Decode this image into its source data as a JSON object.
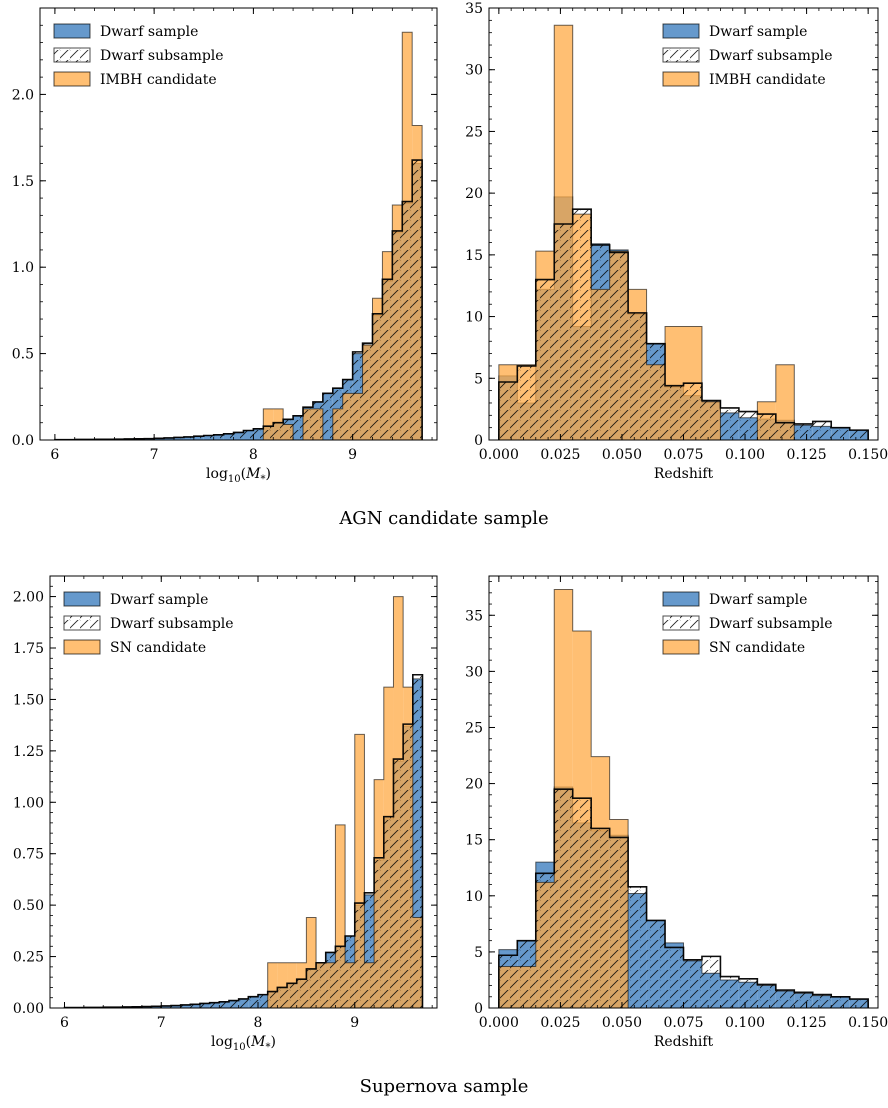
{
  "captions": {
    "top": "AGN candidate sample",
    "bottom": "Supernova sample"
  },
  "colors": {
    "dwarf_fill": "#6699cc",
    "candidate_fill": "#ffaa44",
    "edge": "#000000"
  },
  "chart_data": [
    {
      "id": "agn-mass",
      "type": "histogram",
      "xlabel": "log10(M*)",
      "ylabel": "",
      "xlim": [
        5.85,
        9.85
      ],
      "ylim": [
        0,
        2.5
      ],
      "xticks": [
        6,
        7,
        8,
        9
      ],
      "yticks": [
        0.0,
        0.5,
        1.0,
        1.5,
        2.0
      ],
      "ytick_labels": [
        "0.0",
        "0.5",
        "1.0",
        "1.5",
        "2.0"
      ],
      "legend_position": "top-left",
      "bin_edges": [
        6.0,
        6.1,
        6.2,
        6.3,
        6.4,
        6.5,
        6.6,
        6.7,
        6.8,
        6.9,
        7.0,
        7.1,
        7.2,
        7.3,
        7.4,
        7.5,
        7.6,
        7.7,
        7.8,
        7.9,
        8.0,
        8.1,
        8.2,
        8.3,
        8.4,
        8.5,
        8.6,
        8.7,
        8.8,
        8.9,
        9.0,
        9.1,
        9.2,
        9.3,
        9.4,
        9.5,
        9.6,
        9.7
      ],
      "series": [
        {
          "name": "Dwarf sample",
          "style": "blue",
          "values": [
            0.002,
            0.002,
            0.003,
            0.003,
            0.004,
            0.004,
            0.005,
            0.006,
            0.007,
            0.008,
            0.01,
            0.012,
            0.015,
            0.018,
            0.022,
            0.026,
            0.03,
            0.036,
            0.044,
            0.055,
            0.065,
            0.08,
            0.1,
            0.12,
            0.14,
            0.19,
            0.22,
            0.27,
            0.3,
            0.35,
            0.5,
            0.55,
            0.72,
            0.92,
            1.2,
            1.37,
            1.6
          ]
        },
        {
          "name": "Dwarf subsample",
          "style": "hatch",
          "values": [
            0.002,
            0.002,
            0.003,
            0.003,
            0.004,
            0.004,
            0.005,
            0.006,
            0.007,
            0.008,
            0.01,
            0.012,
            0.015,
            0.018,
            0.022,
            0.026,
            0.03,
            0.036,
            0.044,
            0.055,
            0.065,
            0.08,
            0.1,
            0.12,
            0.14,
            0.19,
            0.22,
            0.27,
            0.3,
            0.35,
            0.51,
            0.56,
            0.73,
            0.93,
            1.21,
            1.38,
            1.62
          ]
        },
        {
          "name": "IMBH candidate",
          "style": "orange",
          "values": [
            0,
            0,
            0,
            0,
            0,
            0,
            0,
            0,
            0,
            0,
            0,
            0,
            0,
            0,
            0,
            0,
            0,
            0,
            0,
            0,
            0,
            0.18,
            0.18,
            0.09,
            0,
            0.18,
            0.18,
            0,
            0.18,
            0.27,
            0.27,
            0.55,
            0.82,
            1.09,
            1.36,
            2.36,
            1.82
          ]
        }
      ]
    },
    {
      "id": "agn-redshift",
      "type": "histogram",
      "xlabel": "Redshift",
      "ylabel": "",
      "xlim": [
        -0.004,
        0.154
      ],
      "ylim": [
        0,
        35
      ],
      "xticks": [
        0.0,
        0.025,
        0.05,
        0.075,
        0.1,
        0.125,
        0.15
      ],
      "xtick_labels": [
        "0.000",
        "0.025",
        "0.050",
        "0.075",
        "0.100",
        "0.125",
        "0.150"
      ],
      "yticks": [
        0,
        5,
        10,
        15,
        20,
        25,
        30,
        35
      ],
      "ytick_labels": [
        "0",
        "5",
        "10",
        "15",
        "20",
        "25",
        "30",
        "35"
      ],
      "legend_position": "top-right",
      "bin_edges": [
        0.0,
        0.0075,
        0.015,
        0.0225,
        0.03,
        0.0375,
        0.045,
        0.0525,
        0.06,
        0.0675,
        0.075,
        0.0825,
        0.09,
        0.0975,
        0.105,
        0.1125,
        0.12,
        0.1275,
        0.135,
        0.1425,
        0.15
      ],
      "series": [
        {
          "name": "Dwarf sample",
          "style": "blue",
          "values": [
            5.2,
            3.0,
            12.2,
            19.7,
            9.2,
            15.9,
            15.4,
            10.2,
            7.8,
            4.3,
            3.6,
            3.1,
            2.2,
            1.8,
            1.7,
            1.6,
            1.2,
            1.1,
            1.0,
            0.8
          ]
        },
        {
          "name": "Dwarf subsample",
          "style": "hatch",
          "values": [
            4.7,
            6.0,
            13.0,
            17.5,
            18.7,
            15.8,
            15.2,
            10.3,
            7.8,
            4.4,
            4.6,
            3.2,
            2.6,
            2.3,
            2.1,
            1.4,
            1.3,
            1.5,
            1.0,
            0.8
          ]
        },
        {
          "name": "IMBH candidate",
          "style": "orange",
          "values": [
            6.1,
            6.1,
            15.3,
            33.6,
            18.3,
            12.2,
            15.3,
            12.2,
            6.1,
            9.2,
            9.2,
            3.1,
            0,
            0,
            3.1,
            6.1,
            0,
            0,
            0,
            0
          ]
        }
      ]
    },
    {
      "id": "sn-mass",
      "type": "histogram",
      "xlabel": "log10(M*)",
      "ylabel": "",
      "xlim": [
        5.85,
        9.85
      ],
      "ylim": [
        0,
        2.1
      ],
      "xticks": [
        6,
        7,
        8,
        9
      ],
      "yticks": [
        0.0,
        0.25,
        0.5,
        0.75,
        1.0,
        1.25,
        1.5,
        1.75,
        2.0
      ],
      "ytick_labels": [
        "0.00",
        "0.25",
        "0.50",
        "0.75",
        "1.00",
        "1.25",
        "1.50",
        "1.75",
        "2.00"
      ],
      "legend_position": "top-left",
      "bin_edges": [
        6.0,
        6.1,
        6.2,
        6.3,
        6.4,
        6.5,
        6.6,
        6.7,
        6.8,
        6.9,
        7.0,
        7.1,
        7.2,
        7.3,
        7.4,
        7.5,
        7.6,
        7.7,
        7.8,
        7.9,
        8.0,
        8.1,
        8.2,
        8.3,
        8.4,
        8.5,
        8.6,
        8.7,
        8.8,
        8.9,
        9.0,
        9.1,
        9.2,
        9.3,
        9.4,
        9.5,
        9.6,
        9.7
      ],
      "series": [
        {
          "name": "Dwarf sample",
          "style": "blue",
          "values": [
            0.002,
            0.002,
            0.003,
            0.003,
            0.004,
            0.004,
            0.005,
            0.006,
            0.007,
            0.008,
            0.01,
            0.012,
            0.015,
            0.018,
            0.022,
            0.026,
            0.03,
            0.036,
            0.044,
            0.055,
            0.065,
            0.08,
            0.1,
            0.12,
            0.14,
            0.19,
            0.22,
            0.27,
            0.3,
            0.35,
            0.5,
            0.55,
            0.72,
            0.92,
            1.2,
            1.37,
            1.6
          ]
        },
        {
          "name": "Dwarf subsample",
          "style": "hatch",
          "values": [
            0.002,
            0.002,
            0.003,
            0.003,
            0.004,
            0.004,
            0.005,
            0.006,
            0.007,
            0.008,
            0.01,
            0.012,
            0.015,
            0.018,
            0.022,
            0.026,
            0.03,
            0.036,
            0.044,
            0.055,
            0.065,
            0.08,
            0.1,
            0.12,
            0.14,
            0.19,
            0.22,
            0.27,
            0.3,
            0.35,
            0.51,
            0.56,
            0.73,
            0.93,
            1.21,
            1.38,
            1.62
          ]
        },
        {
          "name": "SN candidate",
          "style": "orange",
          "values": [
            0,
            0,
            0,
            0,
            0,
            0,
            0,
            0,
            0,
            0,
            0,
            0,
            0,
            0,
            0,
            0,
            0,
            0,
            0,
            0,
            0,
            0.22,
            0.22,
            0.22,
            0.22,
            0.44,
            0.22,
            0.22,
            0.89,
            0.22,
            1.33,
            0.22,
            1.11,
            1.56,
            2.0,
            1.56,
            0.44
          ]
        }
      ]
    },
    {
      "id": "sn-redshift",
      "type": "histogram",
      "xlabel": "Redshift",
      "ylabel": "",
      "xlim": [
        -0.004,
        0.154
      ],
      "ylim": [
        0,
        38.5
      ],
      "xticks": [
        0.0,
        0.025,
        0.05,
        0.075,
        0.1,
        0.125,
        0.15
      ],
      "xtick_labels": [
        "0.000",
        "0.025",
        "0.050",
        "0.075",
        "0.100",
        "0.125",
        "0.150"
      ],
      "yticks": [
        0,
        5,
        10,
        15,
        20,
        25,
        30,
        35
      ],
      "ytick_labels": [
        "0",
        "5",
        "10",
        "15",
        "20",
        "25",
        "30",
        "35"
      ],
      "legend_position": "top-right",
      "bin_edges": [
        0.0,
        0.0075,
        0.015,
        0.0225,
        0.03,
        0.0375,
        0.045,
        0.0525,
        0.06,
        0.0675,
        0.075,
        0.0825,
        0.09,
        0.0975,
        0.105,
        0.1125,
        0.12,
        0.1275,
        0.135,
        0.1425,
        0.15
      ],
      "series": [
        {
          "name": "Dwarf sample",
          "style": "blue",
          "values": [
            5.2,
            6.0,
            13.0,
            19.7,
            16.5,
            15.8,
            15.4,
            10.2,
            7.8,
            5.8,
            4.2,
            3.1,
            2.5,
            2.3,
            2.0,
            1.5,
            1.3,
            1.1,
            1.0,
            0.8
          ]
        },
        {
          "name": "Dwarf subsample",
          "style": "hatch",
          "values": [
            4.7,
            6.0,
            12.0,
            19.5,
            18.7,
            16.0,
            15.2,
            10.8,
            7.8,
            5.4,
            4.3,
            4.6,
            2.8,
            2.6,
            2.1,
            1.6,
            1.4,
            1.2,
            1.0,
            0.8
          ]
        },
        {
          "name": "SN candidate",
          "style": "orange",
          "values": [
            3.7,
            3.7,
            11.2,
            37.3,
            33.6,
            22.4,
            16.8,
            0,
            0,
            0,
            0,
            0,
            0,
            0,
            0,
            0,
            0,
            0,
            0,
            0
          ]
        }
      ]
    }
  ]
}
